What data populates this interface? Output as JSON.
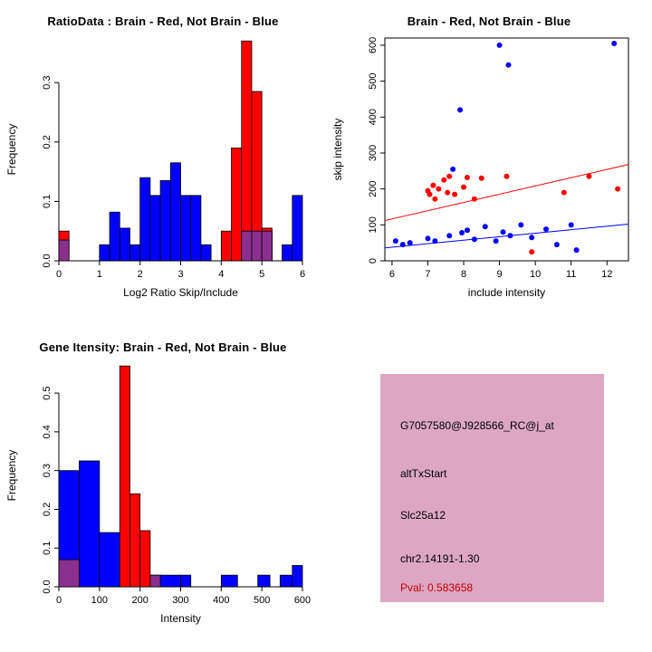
{
  "colors": {
    "red": "#FF0000",
    "blue": "#0000FF",
    "overlap": "#8B2F8F",
    "axis": "#000000",
    "info_box_bg": "#DDA7C4",
    "pval_text": "#C00000"
  },
  "charts": [
    {
      "type": "bar",
      "name": "ratio-histogram",
      "title": "RatioData : Brain - Red, Not Brain - Blue",
      "xlabel": "Log2 Ratio Skip/Include",
      "ylabel": "Frequency",
      "xlim": [
        0,
        6
      ],
      "ylim": [
        0,
        0.375
      ],
      "x_ticks": [
        0,
        1,
        2,
        3,
        4,
        5,
        6
      ],
      "x_tick_labels": [
        "0",
        "1",
        "2",
        "3",
        "4",
        "5",
        "6"
      ],
      "y_ticks": [
        0,
        0.1,
        0.2,
        0.3
      ],
      "y_tick_labels": [
        "0.0",
        "0.1",
        "0.2",
        "0.3"
      ],
      "axis_style": "open",
      "legend": "Brain = red bars, Not Brain = blue bars, overlap = purple",
      "series": [
        {
          "name": "not_brain_blue",
          "color": "blue",
          "bars": [
            [
              1.0,
              0.25,
              0.027
            ],
            [
              1.25,
              0.25,
              0.082
            ],
            [
              1.5,
              0.25,
              0.055
            ],
            [
              1.75,
              0.25,
              0.027
            ],
            [
              2.0,
              0.25,
              0.14
            ],
            [
              2.25,
              0.25,
              0.11
            ],
            [
              2.5,
              0.25,
              0.135
            ],
            [
              2.75,
              0.25,
              0.165
            ],
            [
              3.0,
              0.25,
              0.11
            ],
            [
              3.25,
              0.25,
              0.11
            ],
            [
              3.5,
              0.25,
              0.027
            ],
            [
              5.0,
              0.25,
              0.05
            ],
            [
              5.5,
              0.25,
              0.027
            ],
            [
              5.75,
              0.25,
              0.11
            ]
          ]
        },
        {
          "name": "brain_red",
          "color": "red",
          "bars": [
            [
              0,
              0.25,
              0.05
            ],
            [
              4.0,
              0.25,
              0.05
            ],
            [
              4.25,
              0.25,
              0.19
            ],
            [
              4.5,
              0.25,
              0.37
            ],
            [
              4.75,
              0.25,
              0.285
            ],
            [
              5.0,
              0.25,
              0.055
            ]
          ]
        },
        {
          "name": "overlap",
          "color": "overlap",
          "bars": [
            [
              0,
              0.25,
              0.035
            ],
            [
              4.5,
              0.25,
              0.05
            ],
            [
              4.75,
              0.25,
              0.05
            ],
            [
              5.0,
              0.25,
              0.05
            ]
          ]
        }
      ]
    },
    {
      "type": "scatter",
      "name": "intensity-scatter",
      "title": "Brain - Red, Not Brain - Blue",
      "xlabel": "include intensity",
      "ylabel": "skip intensity",
      "xlim": [
        5.8,
        12.6
      ],
      "ylim": [
        0,
        620
      ],
      "x_ticks": [
        6,
        7,
        8,
        9,
        10,
        11,
        12
      ],
      "x_tick_labels": [
        "6",
        "7",
        "8",
        "9",
        "10",
        "11",
        "12"
      ],
      "y_ticks": [
        0,
        100,
        200,
        300,
        400,
        500,
        600
      ],
      "y_tick_labels": [
        "0",
        "100",
        "200",
        "300",
        "400",
        "500",
        "600"
      ],
      "axis_style": "box",
      "points": {
        "red": [
          [
            7.0,
            195
          ],
          [
            7.05,
            185
          ],
          [
            7.15,
            210
          ],
          [
            7.2,
            172
          ],
          [
            7.3,
            200
          ],
          [
            7.45,
            225
          ],
          [
            7.55,
            190
          ],
          [
            7.6,
            235
          ],
          [
            7.75,
            185
          ],
          [
            8.0,
            205
          ],
          [
            8.1,
            232
          ],
          [
            8.3,
            172
          ],
          [
            8.5,
            230
          ],
          [
            9.2,
            235
          ],
          [
            9.9,
            25
          ],
          [
            10.8,
            190
          ],
          [
            11.5,
            235
          ],
          [
            12.3,
            200
          ]
        ],
        "blue": [
          [
            6.1,
            55
          ],
          [
            6.3,
            45
          ],
          [
            6.5,
            50
          ],
          [
            7.0,
            62
          ],
          [
            7.2,
            55
          ],
          [
            7.6,
            70
          ],
          [
            7.7,
            255
          ],
          [
            7.9,
            420
          ],
          [
            7.95,
            78
          ],
          [
            8.1,
            85
          ],
          [
            8.3,
            60
          ],
          [
            8.6,
            95
          ],
          [
            8.9,
            55
          ],
          [
            9.0,
            600
          ],
          [
            9.1,
            80
          ],
          [
            9.25,
            545
          ],
          [
            9.3,
            70
          ],
          [
            9.6,
            100
          ],
          [
            9.9,
            65
          ],
          [
            10.3,
            88
          ],
          [
            10.6,
            45
          ],
          [
            11.0,
            100
          ],
          [
            11.15,
            30
          ],
          [
            12.2,
            605
          ]
        ]
      },
      "lines": [
        {
          "name": "brain-fit-line",
          "color": "red",
          "x1": 5.8,
          "y1": 112,
          "x2": 12.6,
          "y2": 268
        },
        {
          "name": "not-brain-fit-line",
          "color": "blue",
          "x1": 5.8,
          "y1": 36,
          "x2": 12.6,
          "y2": 102
        }
      ]
    },
    {
      "type": "bar",
      "name": "gene-intensity-histogram",
      "title": "Gene Itensity: Brain - Red, Not Brain - Blue",
      "xlabel": "Intensity",
      "ylabel": "Frequency",
      "xlim": [
        0,
        600
      ],
      "ylim": [
        0,
        0.575
      ],
      "x_ticks": [
        0,
        100,
        200,
        300,
        400,
        500,
        600
      ],
      "x_tick_labels": [
        "0",
        "100",
        "200",
        "300",
        "400",
        "500",
        "600"
      ],
      "y_ticks": [
        0,
        0.1,
        0.2,
        0.3,
        0.4,
        0.5
      ],
      "y_tick_labels": [
        "0.0",
        "0.1",
        "0.2",
        "0.3",
        "0.4",
        "0.5"
      ],
      "axis_style": "open",
      "legend": "Brain = red bars, Not Brain = blue bars, overlap = purple",
      "series": [
        {
          "name": "not_brain_blue",
          "color": "blue",
          "bars": [
            [
              0,
              50,
              0.3
            ],
            [
              50,
              50,
              0.325
            ],
            [
              100,
              50,
              0.14
            ],
            [
              250,
              50,
              0.03
            ],
            [
              300,
              25,
              0.03
            ],
            [
              400,
              40,
              0.03
            ],
            [
              490,
              30,
              0.03
            ],
            [
              545,
              30,
              0.03
            ],
            [
              575,
              25,
              0.055
            ]
          ]
        },
        {
          "name": "brain_red",
          "color": "red",
          "bars": [
            [
              150,
              25,
              0.57
            ],
            [
              175,
              25,
              0.24
            ],
            [
              200,
              25,
              0.145
            ],
            [
              225,
              25,
              0.03
            ]
          ]
        },
        {
          "name": "overlap",
          "color": "overlap",
          "bars": [
            [
              0,
              50,
              0.07
            ],
            [
              225,
              25,
              0.03
            ]
          ]
        }
      ]
    }
  ],
  "info_panel": {
    "probe_id": "G7057580@J928566_RC@j_at",
    "event_type": "altTxStart",
    "gene_symbol": "Slc25a12",
    "location": "chr2.14191-1.30",
    "pval": "Pval: 0.583658"
  }
}
